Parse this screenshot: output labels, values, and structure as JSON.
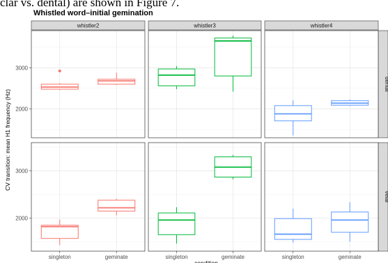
{
  "page": {
    "caption": "clar vs. dental) are shown in Figure 7."
  },
  "chart_data": {
    "type": "boxplot",
    "title": "Whistled word–initial gemination",
    "xlabel": "condition",
    "ylabel": "CV transition: mean H1 frequency (Hz)",
    "categories": [
      "singleton",
      "geminate"
    ],
    "col_facets": [
      "whistler2",
      "whistler3",
      "whistler4"
    ],
    "row_facets": [
      "dental",
      "velar"
    ],
    "facet_colors": {
      "whistler2": "#F8766D",
      "whistler3": "#00BA38",
      "whistler4": "#619CFF"
    },
    "panel_background": "#FFFFFF",
    "strip_background": "#D9D9D9",
    "grid": true,
    "rows": [
      {
        "facet": "dental",
        "ylim": [
          1300,
          3900
        ],
        "yticks": [
          2000,
          3000
        ],
        "panels": [
          {
            "facet": "whistler2",
            "boxes": [
              {
                "category": "singleton",
                "min": 2460,
                "q1": 2480,
                "median": 2530,
                "q3": 2600,
                "max": 2630,
                "outliers": [
                  2920
                ]
              },
              {
                "category": "geminate",
                "min": 2580,
                "q1": 2600,
                "median": 2680,
                "q3": 2720,
                "max": 2880,
                "outliers": []
              }
            ]
          },
          {
            "facet": "whistler3",
            "boxes": [
              {
                "category": "singleton",
                "min": 2480,
                "q1": 2560,
                "median": 2820,
                "q3": 2970,
                "max": 3040,
                "outliers": []
              },
              {
                "category": "geminate",
                "min": 2420,
                "q1": 2800,
                "median": 3650,
                "q3": 3720,
                "max": 3780,
                "outliers": []
              }
            ]
          },
          {
            "facet": "whistler4",
            "boxes": [
              {
                "category": "singleton",
                "min": 1360,
                "q1": 1710,
                "median": 1880,
                "q3": 2080,
                "max": 2210,
                "outliers": []
              },
              {
                "category": "geminate",
                "min": 2070,
                "q1": 2090,
                "median": 2140,
                "q3": 2200,
                "max": 2230,
                "outliers": []
              }
            ]
          }
        ]
      },
      {
        "facet": "velar",
        "ylim": [
          1300,
          3600
        ],
        "yticks": [
          2000,
          3000
        ],
        "panels": [
          {
            "facet": "whistler2",
            "boxes": [
              {
                "category": "singleton",
                "min": 1430,
                "q1": 1570,
                "median": 1820,
                "q3": 1850,
                "max": 1970,
                "outliers": []
              },
              {
                "category": "geminate",
                "min": 2060,
                "q1": 2150,
                "median": 2220,
                "q3": 2380,
                "max": 2410,
                "outliers": []
              }
            ]
          },
          {
            "facet": "whistler3",
            "boxes": [
              {
                "category": "singleton",
                "min": 1460,
                "q1": 1650,
                "median": 1960,
                "q3": 2110,
                "max": 2230,
                "outliers": []
              },
              {
                "category": "geminate",
                "min": 2820,
                "q1": 2870,
                "median": 3080,
                "q3": 3300,
                "max": 3340,
                "outliers": []
              }
            ]
          },
          {
            "facet": "whistler4",
            "boxes": [
              {
                "category": "singleton",
                "min": 1480,
                "q1": 1550,
                "median": 1660,
                "q3": 1990,
                "max": 2200,
                "outliers": []
              },
              {
                "category": "geminate",
                "min": 1500,
                "q1": 1700,
                "median": 1960,
                "q3": 2130,
                "max": 2340,
                "outliers": []
              }
            ]
          }
        ]
      }
    ]
  }
}
